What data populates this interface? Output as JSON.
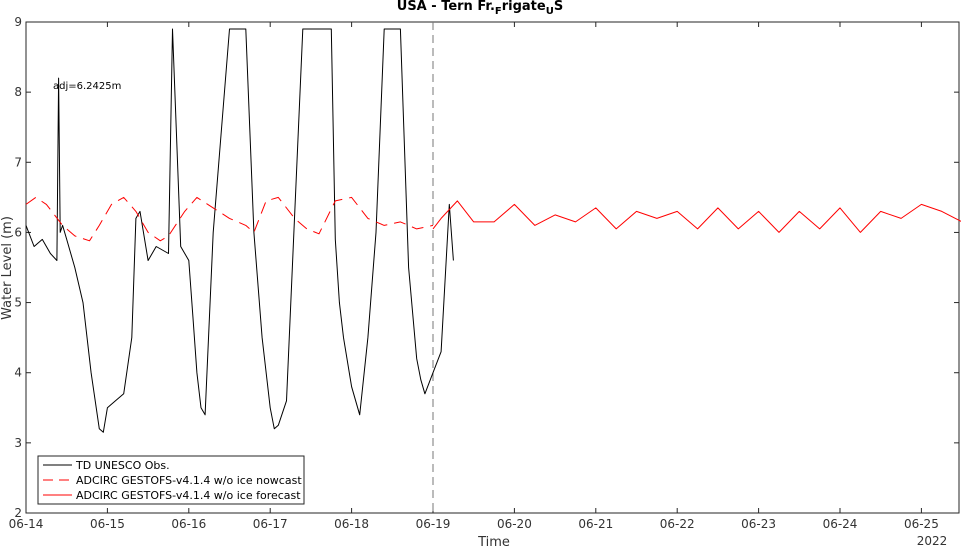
{
  "chart_data": {
    "type": "line",
    "title_main": "USA - Tern Fr.",
    "title_sub1": "F",
    "title_mid": "rigate",
    "title_sub2": "U",
    "title_end": "S",
    "xlabel": "Time",
    "ylabel": "Water Level (m)",
    "year_label": "2022",
    "annotation": "adj=6.2425m",
    "xlim": [
      0,
      11.5
    ],
    "ylim": [
      2,
      9
    ],
    "x_ticks": [
      0,
      1,
      2,
      3,
      4,
      5,
      6,
      7,
      8,
      9,
      10,
      11
    ],
    "x_tick_labels": [
      "06-14",
      "06-15",
      "06-16",
      "06-17",
      "06-18",
      "06-19",
      "06-20",
      "06-21",
      "06-22",
      "06-23",
      "06-24",
      "06-25"
    ],
    "y_ticks": [
      2,
      3,
      4,
      5,
      6,
      7,
      8,
      9
    ],
    "y_tick_labels": [
      "2",
      "3",
      "4",
      "5",
      "6",
      "7",
      "8",
      "9"
    ],
    "nowcast_end_x": 5.0,
    "legend_position": "bottom-left",
    "series": [
      {
        "name": "TD UNESCO Obs.",
        "color": "#000000",
        "style": "solid",
        "x": [
          0.0,
          0.1,
          0.2,
          0.3,
          0.38,
          0.4,
          0.42,
          0.45,
          0.5,
          0.6,
          0.7,
          0.8,
          0.9,
          0.95,
          1.0,
          1.1,
          1.2,
          1.3,
          1.35,
          1.4,
          1.5,
          1.6,
          1.75,
          1.8,
          1.9,
          2.0,
          2.05,
          2.1,
          2.15,
          2.2,
          2.3,
          2.5,
          2.6,
          2.7,
          2.8,
          2.9,
          3.0,
          3.05,
          3.1,
          3.2,
          3.4,
          3.6,
          3.75,
          3.8,
          3.85,
          3.9,
          4.0,
          4.1,
          4.2,
          4.3,
          4.4,
          4.5,
          4.6,
          4.7,
          4.8,
          4.85,
          4.9,
          5.0,
          5.1,
          5.2,
          5.25
        ],
        "y": [
          6.1,
          5.8,
          5.9,
          5.7,
          5.6,
          8.2,
          6.0,
          6.1,
          5.9,
          5.5,
          5.0,
          4.0,
          3.2,
          3.15,
          3.5,
          3.6,
          3.7,
          4.5,
          6.2,
          6.3,
          5.6,
          5.8,
          5.7,
          8.9,
          5.8,
          5.6,
          4.8,
          4.0,
          3.5,
          3.4,
          6.0,
          8.9,
          8.9,
          8.9,
          6.0,
          4.5,
          3.5,
          3.2,
          3.25,
          3.6,
          8.9,
          8.9,
          8.9,
          5.9,
          5.0,
          4.5,
          3.8,
          3.4,
          4.5,
          6.0,
          8.9,
          8.9,
          8.9,
          5.5,
          4.2,
          3.9,
          3.7,
          4.0,
          4.3,
          6.4,
          5.6
        ]
      },
      {
        "name": "ADCIRC GESTOFS-v4.1.4 w/o ice nowcast",
        "color": "#ff0000",
        "style": "dashed",
        "x": [
          0.0,
          0.12,
          0.25,
          0.45,
          0.6,
          0.78,
          0.9,
          1.05,
          1.2,
          1.35,
          1.5,
          1.65,
          1.75,
          1.95,
          2.1,
          2.3,
          2.5,
          2.7,
          2.8,
          2.95,
          3.1,
          3.3,
          3.45,
          3.6,
          3.8,
          4.0,
          4.2,
          4.4,
          4.6,
          4.8,
          5.0
        ],
        "y": [
          6.4,
          6.5,
          6.4,
          6.1,
          5.95,
          5.88,
          6.1,
          6.4,
          6.5,
          6.3,
          6.0,
          5.88,
          5.95,
          6.3,
          6.5,
          6.35,
          6.2,
          6.1,
          6.0,
          6.45,
          6.5,
          6.2,
          6.05,
          5.98,
          6.45,
          6.5,
          6.2,
          6.1,
          6.15,
          6.05,
          6.1
        ]
      },
      {
        "name": "ADCIRC GESTOFS-v4.1.4 w/o ice forecast",
        "color": "#ff0000",
        "style": "solid",
        "x": [
          5.0,
          5.1,
          5.3,
          5.5,
          5.75,
          6.0,
          6.25,
          6.5,
          6.75,
          7.0,
          7.25,
          7.5,
          7.75,
          8.0,
          8.25,
          8.5,
          8.75,
          9.0,
          9.25,
          9.5,
          9.75,
          10.0,
          10.25,
          10.5,
          10.75,
          11.0,
          11.25,
          11.5
        ],
        "y": [
          6.05,
          6.2,
          6.45,
          6.15,
          6.15,
          6.4,
          6.1,
          6.25,
          6.15,
          6.35,
          6.05,
          6.3,
          6.2,
          6.3,
          6.05,
          6.35,
          6.05,
          6.3,
          6.0,
          6.3,
          6.05,
          6.35,
          6.0,
          6.3,
          6.2,
          6.4,
          6.3,
          6.15
        ]
      }
    ]
  }
}
